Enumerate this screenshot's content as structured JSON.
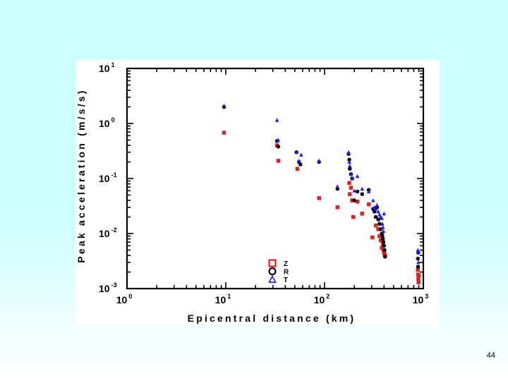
{
  "slide": {
    "page_number": "44"
  },
  "chart_data": {
    "type": "scatter",
    "title": "",
    "xlabel": "Epicentral distance (km)",
    "ylabel": "Peak acceleration (m/s/s)",
    "xscale": "log",
    "yscale": "log",
    "xlim": [
      1,
      1000
    ],
    "ylim": [
      0.001,
      10
    ],
    "grid": false,
    "legend_position": "bottom-center",
    "x_ticks": [
      {
        "base": "10",
        "exp": "0"
      },
      {
        "base": "10",
        "exp": "1"
      },
      {
        "base": "10",
        "exp": "2"
      },
      {
        "base": "10",
        "exp": "3"
      }
    ],
    "y_ticks": [
      {
        "base": "10",
        "exp": "-3"
      },
      {
        "base": "10",
        "exp": "-2"
      },
      {
        "base": "10",
        "exp": "-1"
      },
      {
        "base": "10",
        "exp": "0"
      },
      {
        "base": "10",
        "exp": "1"
      }
    ],
    "series": [
      {
        "name": "Z",
        "marker": "square",
        "color": "#dd2222",
        "x": [
          9.6,
          33,
          34,
          53,
          88,
          135,
          178,
          180,
          185,
          190,
          195,
          215,
          240,
          280,
          305,
          330,
          350,
          360,
          370,
          380,
          390,
          395,
          400,
          405,
          410,
          880,
          885,
          890,
          895,
          900
        ],
        "y": [
          0.68,
          0.4,
          0.21,
          0.15,
          0.044,
          0.03,
          0.083,
          0.052,
          0.068,
          0.04,
          0.02,
          0.038,
          0.023,
          0.034,
          0.0085,
          0.014,
          0.012,
          0.009,
          0.0075,
          0.0055,
          0.0065,
          0.005,
          0.0045,
          0.0042,
          0.004,
          0.0022,
          0.0018,
          0.0015,
          0.0013,
          0.0017
        ]
      },
      {
        "name": "R",
        "marker": "circle",
        "color": "#000000",
        "x": [
          9.6,
          33,
          34,
          52,
          55,
          57,
          88,
          135,
          175,
          178,
          180,
          185,
          190,
          200,
          215,
          240,
          280,
          310,
          320,
          330,
          340,
          350,
          360,
          370,
          380,
          385,
          390,
          395,
          400,
          405,
          410,
          880,
          885,
          890
        ],
        "y": [
          2.0,
          0.48,
          0.38,
          0.3,
          0.2,
          0.18,
          0.2,
          0.065,
          0.28,
          0.22,
          0.15,
          0.12,
          0.1,
          0.04,
          0.058,
          0.052,
          0.062,
          0.028,
          0.025,
          0.02,
          0.03,
          0.018,
          0.015,
          0.012,
          0.01,
          0.009,
          0.008,
          0.007,
          0.006,
          0.005,
          0.0038,
          0.0035,
          0.0025,
          0.0045
        ]
      },
      {
        "name": "T",
        "marker": "triangle",
        "color": "#1a1aff",
        "x": [
          9.6,
          33,
          34,
          52,
          55,
          58,
          88,
          135,
          175,
          178,
          180,
          185,
          190,
          200,
          215,
          240,
          280,
          310,
          320,
          330,
          340,
          350,
          360,
          370,
          380,
          385,
          390,
          395,
          400,
          880,
          885,
          890
        ],
        "y": [
          2.1,
          1.15,
          0.5,
          0.3,
          0.21,
          0.27,
          0.21,
          0.072,
          0.3,
          0.2,
          0.17,
          0.12,
          0.1,
          0.06,
          0.11,
          0.065,
          0.058,
          0.04,
          0.03,
          0.028,
          0.033,
          0.025,
          0.022,
          0.02,
          0.019,
          0.015,
          0.013,
          0.011,
          0.023,
          0.005,
          0.0045,
          0.003
        ]
      }
    ]
  }
}
